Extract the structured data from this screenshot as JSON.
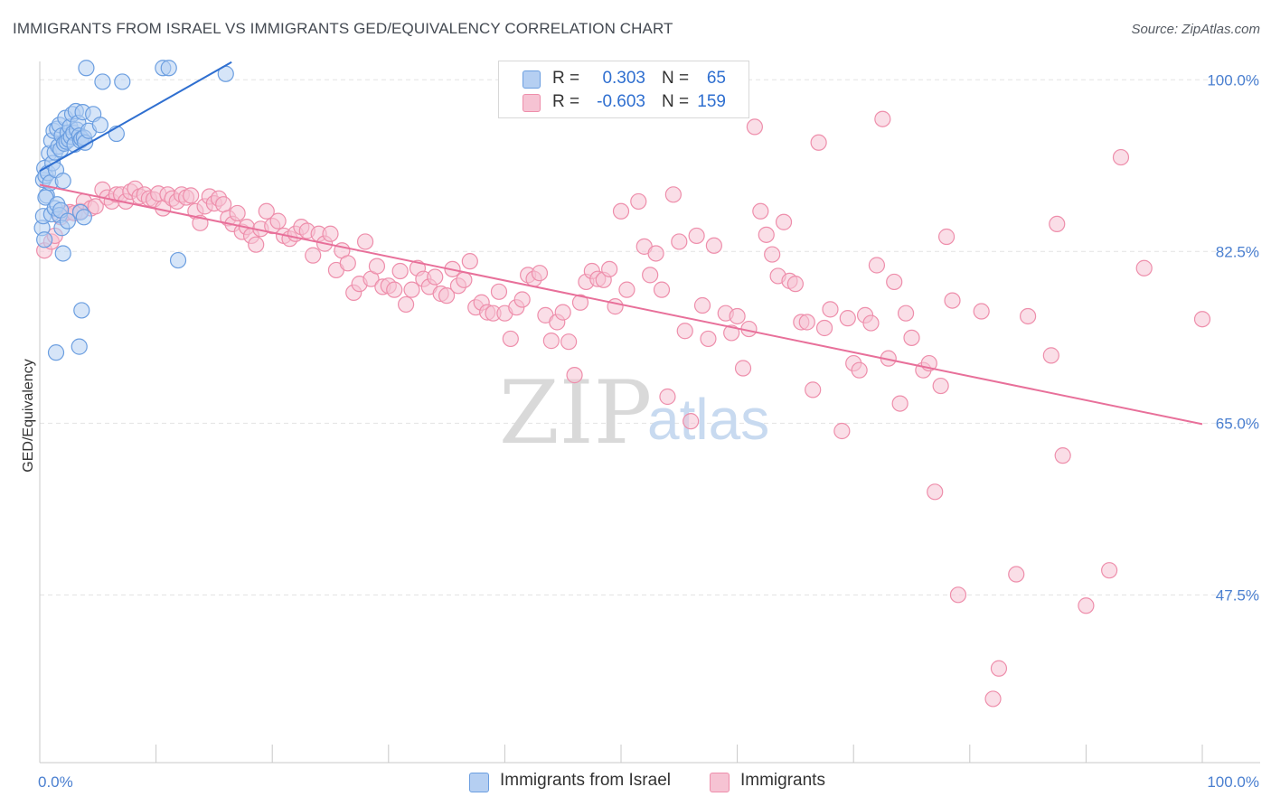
{
  "header": {
    "title": "IMMIGRANTS FROM ISRAEL VS IMMIGRANTS GED/EQUIVALENCY CORRELATION CHART",
    "source": "Source: ZipAtlas.com"
  },
  "watermark": {
    "zip": "ZIP",
    "atlas": "atlas"
  },
  "stats": {
    "rows": [
      {
        "r_label": "R =",
        "r_value": "0.303",
        "n_label": "N =",
        "n_value": "65"
      },
      {
        "r_label": "R =",
        "r_value": "-0.603",
        "n_label": "N =",
        "n_value": "159"
      }
    ]
  },
  "legend": {
    "items": [
      {
        "label": "Immigrants from Israel"
      },
      {
        "label": "Immigrants"
      }
    ]
  },
  "colors": {
    "blue_fill": "#b5cff2",
    "blue_stroke": "#6b9ee0",
    "blue_line": "#2f6fd0",
    "blue_text": "#2f6fd0",
    "pink_fill": "#f6c3d3",
    "pink_stroke": "#ee8eab",
    "pink_line": "#e8709a",
    "pink_text": "#2f6fd0",
    "axis_text": "#4a7fd0",
    "grid": "#e3e3e3"
  },
  "chart_data": {
    "type": "scatter",
    "xlabel": "",
    "ylabel": "GED/Equivalency",
    "xlim": [
      0,
      100
    ],
    "ylim": [
      30,
      100
    ],
    "x_tick_labels": [
      "0.0%",
      "100.0%"
    ],
    "y_ticks": [
      {
        "value": 100.0,
        "label": "100.0%"
      },
      {
        "value": 82.5,
        "label": "82.5%"
      },
      {
        "value": 65.0,
        "label": "65.0%"
      },
      {
        "value": 47.5,
        "label": "47.5%"
      }
    ],
    "grid": true,
    "legend_position": "bottom",
    "series": [
      {
        "name": "Immigrants from Israel",
        "trend": {
          "x": [
            0,
            16.5
          ],
          "y": [
            90.7,
            101.8
          ]
        },
        "points": [
          [
            0.3,
            89.8
          ],
          [
            0.4,
            91.0
          ],
          [
            0.5,
            90.2
          ],
          [
            0.6,
            88.2
          ],
          [
            0.7,
            90.5
          ],
          [
            0.8,
            92.5
          ],
          [
            0.9,
            89.5
          ],
          [
            1.0,
            93.8
          ],
          [
            1.1,
            91.5
          ],
          [
            1.2,
            94.8
          ],
          [
            1.3,
            92.6
          ],
          [
            1.4,
            90.8
          ],
          [
            1.5,
            95.0
          ],
          [
            1.6,
            93.2
          ],
          [
            1.7,
            95.4
          ],
          [
            1.8,
            92.9
          ],
          [
            1.9,
            94.3
          ],
          [
            2.0,
            89.7
          ],
          [
            2.1,
            93.5
          ],
          [
            2.2,
            96.1
          ],
          [
            2.3,
            93.7
          ],
          [
            2.4,
            94.6
          ],
          [
            2.5,
            93.9
          ],
          [
            2.6,
            95.2
          ],
          [
            2.7,
            94.2
          ],
          [
            2.8,
            96.5
          ],
          [
            2.9,
            94.6
          ],
          [
            3.0,
            93.4
          ],
          [
            3.1,
            96.8
          ],
          [
            3.2,
            94.9
          ],
          [
            3.3,
            95.6
          ],
          [
            3.4,
            94.3
          ],
          [
            3.5,
            93.8
          ],
          [
            3.6,
            94.0
          ],
          [
            3.7,
            96.7
          ],
          [
            3.8,
            94.1
          ],
          [
            3.9,
            93.6
          ],
          [
            4.0,
            101.2
          ],
          [
            4.2,
            94.8
          ],
          [
            4.6,
            96.5
          ],
          [
            5.2,
            95.4
          ],
          [
            5.4,
            99.8
          ],
          [
            6.6,
            94.5
          ],
          [
            7.1,
            99.8
          ],
          [
            10.6,
            101.2
          ],
          [
            11.1,
            101.2
          ],
          [
            16.0,
            100.6
          ],
          [
            0.2,
            84.9
          ],
          [
            0.3,
            86.1
          ],
          [
            0.4,
            83.7
          ],
          [
            0.5,
            88.0
          ],
          [
            1.0,
            86.3
          ],
          [
            1.3,
            86.9
          ],
          [
            1.5,
            87.3
          ],
          [
            1.7,
            86.2
          ],
          [
            1.8,
            86.7
          ],
          [
            2.0,
            82.3
          ],
          [
            1.9,
            84.9
          ],
          [
            2.4,
            85.6
          ],
          [
            3.5,
            86.5
          ],
          [
            11.9,
            81.6
          ],
          [
            3.6,
            76.5
          ],
          [
            3.4,
            72.8
          ],
          [
            1.4,
            72.2
          ],
          [
            3.8,
            86.0
          ]
        ]
      },
      {
        "name": "Immigrants",
        "trend": {
          "x": [
            0,
            100
          ],
          "y": [
            89.3,
            64.9
          ]
        },
        "points": [
          [
            0.4,
            82.6
          ],
          [
            1.0,
            83.5
          ],
          [
            1.3,
            84.1
          ],
          [
            1.8,
            86.0
          ],
          [
            2.2,
            86.4
          ],
          [
            2.6,
            86.5
          ],
          [
            3.0,
            86.4
          ],
          [
            3.5,
            86.6
          ],
          [
            3.8,
            87.6
          ],
          [
            4.4,
            86.9
          ],
          [
            4.8,
            87.1
          ],
          [
            5.4,
            88.8
          ],
          [
            5.8,
            88.0
          ],
          [
            6.2,
            87.6
          ],
          [
            6.6,
            88.3
          ],
          [
            7.0,
            88.3
          ],
          [
            7.4,
            87.6
          ],
          [
            7.8,
            88.6
          ],
          [
            8.2,
            88.9
          ],
          [
            8.6,
            88.1
          ],
          [
            9.0,
            88.3
          ],
          [
            9.4,
            87.9
          ],
          [
            9.8,
            87.8
          ],
          [
            10.2,
            88.4
          ],
          [
            10.6,
            86.9
          ],
          [
            11.0,
            88.3
          ],
          [
            11.4,
            87.9
          ],
          [
            11.8,
            87.6
          ],
          [
            12.2,
            88.3
          ],
          [
            12.6,
            88.0
          ],
          [
            13.0,
            88.2
          ],
          [
            13.4,
            86.6
          ],
          [
            13.8,
            85.4
          ],
          [
            14.2,
            87.1
          ],
          [
            14.6,
            88.1
          ],
          [
            15.0,
            87.4
          ],
          [
            15.4,
            87.9
          ],
          [
            15.8,
            87.3
          ],
          [
            16.2,
            85.9
          ],
          [
            16.6,
            85.3
          ],
          [
            17.0,
            86.4
          ],
          [
            17.4,
            84.5
          ],
          [
            17.8,
            85.0
          ],
          [
            18.2,
            84.1
          ],
          [
            18.6,
            83.2
          ],
          [
            19.0,
            84.8
          ],
          [
            19.5,
            86.6
          ],
          [
            20.0,
            85.1
          ],
          [
            20.5,
            85.6
          ],
          [
            21.0,
            84.1
          ],
          [
            21.5,
            83.8
          ],
          [
            22.0,
            84.3
          ],
          [
            22.5,
            85.0
          ],
          [
            23.0,
            84.6
          ],
          [
            23.5,
            82.1
          ],
          [
            24.0,
            84.3
          ],
          [
            24.5,
            83.3
          ],
          [
            25.0,
            84.3
          ],
          [
            25.5,
            80.6
          ],
          [
            26.0,
            82.6
          ],
          [
            26.5,
            81.3
          ],
          [
            27.0,
            78.3
          ],
          [
            27.5,
            79.2
          ],
          [
            28.0,
            83.5
          ],
          [
            28.5,
            79.7
          ],
          [
            29.0,
            81.0
          ],
          [
            29.5,
            78.9
          ],
          [
            30.0,
            79.0
          ],
          [
            30.5,
            78.6
          ],
          [
            31.0,
            80.5
          ],
          [
            31.5,
            77.1
          ],
          [
            32.0,
            78.6
          ],
          [
            32.5,
            80.8
          ],
          [
            33.0,
            79.7
          ],
          [
            33.5,
            78.9
          ],
          [
            34.0,
            79.9
          ],
          [
            34.5,
            78.2
          ],
          [
            35.0,
            78.0
          ],
          [
            35.5,
            80.7
          ],
          [
            36.0,
            79.0
          ],
          [
            36.5,
            79.6
          ],
          [
            37.0,
            81.5
          ],
          [
            37.5,
            76.8
          ],
          [
            38.0,
            77.3
          ],
          [
            38.5,
            76.3
          ],
          [
            39.0,
            76.2
          ],
          [
            39.5,
            78.4
          ],
          [
            40.0,
            76.2
          ],
          [
            40.5,
            73.6
          ],
          [
            41.0,
            76.8
          ],
          [
            41.5,
            77.6
          ],
          [
            42.0,
            80.1
          ],
          [
            42.5,
            79.7
          ],
          [
            43.0,
            80.3
          ],
          [
            43.5,
            76.0
          ],
          [
            44.0,
            73.4
          ],
          [
            44.5,
            75.3
          ],
          [
            45.0,
            76.3
          ],
          [
            45.5,
            73.3
          ],
          [
            46.0,
            69.9
          ],
          [
            46.5,
            77.3
          ],
          [
            47.0,
            79.4
          ],
          [
            47.5,
            80.5
          ],
          [
            48.0,
            79.7
          ],
          [
            48.5,
            79.6
          ],
          [
            49.0,
            80.7
          ],
          [
            49.5,
            76.9
          ],
          [
            50.0,
            86.6
          ],
          [
            50.5,
            78.6
          ],
          [
            51.5,
            87.6
          ],
          [
            52.0,
            83.0
          ],
          [
            52.5,
            80.1
          ],
          [
            53.0,
            82.3
          ],
          [
            53.5,
            78.6
          ],
          [
            54.0,
            67.7
          ],
          [
            54.5,
            88.3
          ],
          [
            55.0,
            83.5
          ],
          [
            55.5,
            74.4
          ],
          [
            56.0,
            65.2
          ],
          [
            56.5,
            84.1
          ],
          [
            57.0,
            77.0
          ],
          [
            57.5,
            73.6
          ],
          [
            58.0,
            83.1
          ],
          [
            59.0,
            76.2
          ],
          [
            59.5,
            74.2
          ],
          [
            60.0,
            75.9
          ],
          [
            60.5,
            70.6
          ],
          [
            61.0,
            74.6
          ],
          [
            61.5,
            95.2
          ],
          [
            62.0,
            86.6
          ],
          [
            62.5,
            84.2
          ],
          [
            63.0,
            82.2
          ],
          [
            63.5,
            80.0
          ],
          [
            64.0,
            85.5
          ],
          [
            64.5,
            79.5
          ],
          [
            65.0,
            79.2
          ],
          [
            65.5,
            75.3
          ],
          [
            66.0,
            75.3
          ],
          [
            66.5,
            68.4
          ],
          [
            67.0,
            93.6
          ],
          [
            67.5,
            74.7
          ],
          [
            68.0,
            76.6
          ],
          [
            69.0,
            64.2
          ],
          [
            69.5,
            75.7
          ],
          [
            70.0,
            71.1
          ],
          [
            70.5,
            70.4
          ],
          [
            71.0,
            76.0
          ],
          [
            71.5,
            75.2
          ],
          [
            72.0,
            81.1
          ],
          [
            72.5,
            96.0
          ],
          [
            73.0,
            71.6
          ],
          [
            73.5,
            79.4
          ],
          [
            74.0,
            67.0
          ],
          [
            74.5,
            76.2
          ],
          [
            75.0,
            73.7
          ],
          [
            76.0,
            70.4
          ],
          [
            76.5,
            71.1
          ],
          [
            77.0,
            58.0
          ],
          [
            77.5,
            68.8
          ],
          [
            78.0,
            84.0
          ],
          [
            78.5,
            77.5
          ],
          [
            79.0,
            47.5
          ],
          [
            82.0,
            36.9
          ],
          [
            84.0,
            49.6
          ],
          [
            87.5,
            85.3
          ],
          [
            90.0,
            46.4
          ],
          [
            92.0,
            50.0
          ],
          [
            93.0,
            92.1
          ],
          [
            95.0,
            80.8
          ],
          [
            100.0,
            75.6
          ],
          [
            87.0,
            71.9
          ],
          [
            85.0,
            75.9
          ],
          [
            81.0,
            76.4
          ],
          [
            82.5,
            40.0
          ],
          [
            88.0,
            61.7
          ]
        ]
      }
    ]
  }
}
